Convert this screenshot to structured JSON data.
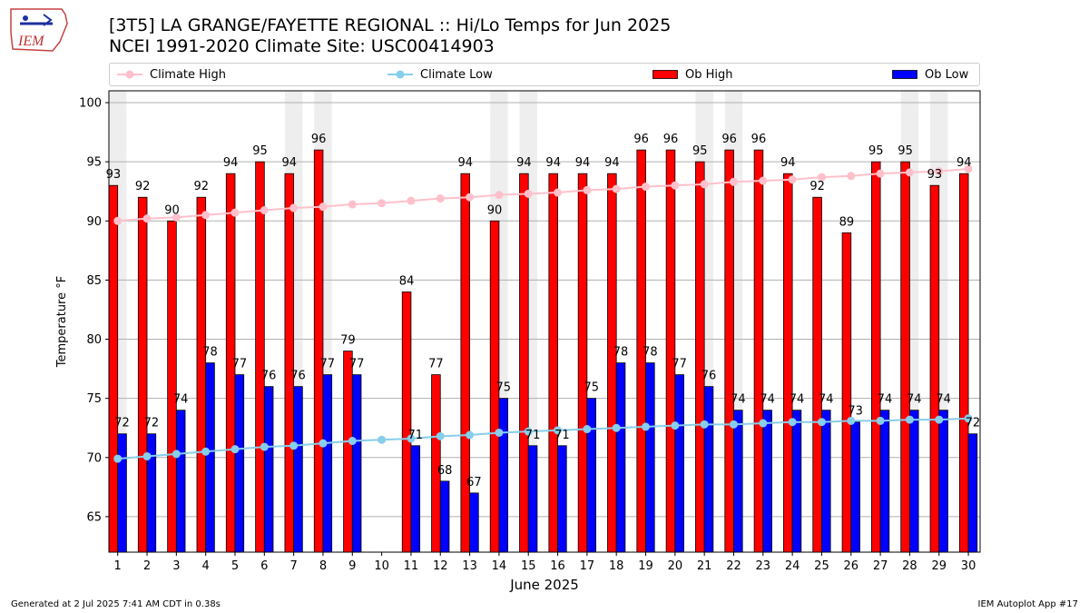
{
  "header": {
    "logo_text": "IEM",
    "title_line1": "[3T5] LA GRANGE/FAYETTE REGIONAL :: Hi/Lo Temps for Jun 2025",
    "title_line2": "NCEI 1991-2020 Climate Site: USC00414903"
  },
  "legend": {
    "climate_high": "Climate High",
    "climate_low": "Climate Low",
    "ob_high": "Ob High",
    "ob_low": "Ob Low"
  },
  "colors": {
    "ob_high": "#ff0000",
    "ob_low": "#0000ff",
    "climate_high": "#ffc0cb",
    "climate_low": "#87ceeb",
    "weekend_band": "#eeeeee"
  },
  "footer": {
    "generated": "Generated at 2 Jul 2025 7:41 AM CDT in 0.38s",
    "app": "IEM Autoplot App #17"
  },
  "chart_data": {
    "type": "bar",
    "title": "[3T5] LA GRANGE/FAYETTE REGIONAL :: Hi/Lo Temps for Jun 2025",
    "xlabel": "June 2025",
    "ylabel": "Temperature °F",
    "ylim": [
      62,
      101
    ],
    "yticks": [
      65,
      70,
      75,
      80,
      85,
      90,
      95,
      100
    ],
    "grid": true,
    "legend_position": "top",
    "categories": [
      "1",
      "2",
      "3",
      "4",
      "5",
      "6",
      "7",
      "8",
      "9",
      "10",
      "11",
      "12",
      "13",
      "14",
      "15",
      "16",
      "17",
      "18",
      "19",
      "20",
      "21",
      "22",
      "23",
      "24",
      "25",
      "26",
      "27",
      "28",
      "29",
      "30"
    ],
    "shaded_days": [
      1,
      7,
      8,
      14,
      15,
      21,
      22,
      28,
      29
    ],
    "series": [
      {
        "name": "Ob High",
        "kind": "bar",
        "values": [
          93,
          92,
          90,
          92,
          94,
          95,
          94,
          96,
          79,
          null,
          84,
          77,
          94,
          90,
          94,
          94,
          94,
          94,
          96,
          96,
          95,
          96,
          96,
          94,
          92,
          89,
          95,
          95,
          93,
          94
        ]
      },
      {
        "name": "Ob Low",
        "kind": "bar",
        "values": [
          72,
          72,
          74,
          78,
          77,
          76,
          76,
          77,
          77,
          null,
          71,
          68,
          67,
          75,
          71,
          71,
          75,
          78,
          78,
          77,
          76,
          74,
          74,
          74,
          74,
          73,
          74,
          74,
          74,
          72
        ]
      },
      {
        "name": "Climate High",
        "kind": "line",
        "values": [
          90.0,
          90.2,
          90.3,
          90.5,
          90.7,
          90.9,
          91.1,
          91.2,
          91.4,
          91.5,
          91.7,
          91.9,
          92.0,
          92.2,
          92.3,
          92.4,
          92.6,
          92.7,
          92.9,
          93.0,
          93.1,
          93.3,
          93.4,
          93.5,
          93.7,
          93.8,
          94.0,
          94.1,
          94.2,
          94.4
        ]
      },
      {
        "name": "Climate Low",
        "kind": "line",
        "values": [
          69.9,
          70.1,
          70.3,
          70.5,
          70.7,
          70.9,
          71.0,
          71.2,
          71.4,
          71.5,
          71.6,
          71.8,
          71.9,
          72.1,
          72.2,
          72.3,
          72.4,
          72.5,
          72.6,
          72.7,
          72.8,
          72.8,
          72.9,
          73.0,
          73.0,
          73.1,
          73.1,
          73.2,
          73.2,
          73.3
        ]
      }
    ]
  }
}
